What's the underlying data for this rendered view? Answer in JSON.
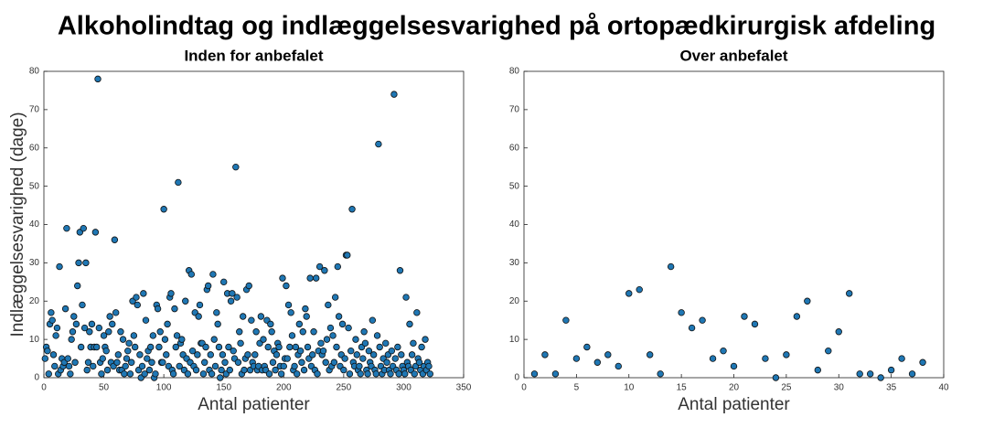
{
  "title": "Alkoholindtag og indlæggelsesvarighed på ortopædkirurgisk afdeling",
  "chart_data": [
    {
      "type": "scatter",
      "title": "Inden for anbefalet",
      "xlabel": "Antal patienter",
      "ylabel": "Indlæggelsesvarighed (dage)",
      "color": "#1f77b4",
      "grid": false,
      "xlim": [
        0,
        350
      ],
      "xticks": [
        0,
        50,
        100,
        150,
        200,
        250,
        300,
        350
      ],
      "ylim": [
        0,
        80
      ],
      "yticks": [
        0,
        10,
        20,
        30,
        40,
        50,
        60,
        70,
        80
      ],
      "x": [
        1,
        2,
        3,
        4,
        5,
        6,
        7,
        8,
        9,
        10,
        11,
        12,
        13,
        14,
        15,
        16,
        17,
        18,
        19,
        20,
        21,
        22,
        23,
        24,
        25,
        26,
        27,
        28,
        29,
        30,
        31,
        32,
        33,
        34,
        35,
        36,
        37,
        38,
        39,
        40,
        41,
        42,
        43,
        44,
        45,
        46,
        47,
        48,
        49,
        50,
        51,
        52,
        53,
        54,
        55,
        56,
        57,
        58,
        59,
        60,
        61,
        62,
        63,
        64,
        65,
        66,
        67,
        68,
        69,
        70,
        71,
        72,
        73,
        74,
        75,
        76,
        77,
        78,
        79,
        80,
        81,
        82,
        83,
        84,
        85,
        86,
        87,
        88,
        89,
        90,
        91,
        92,
        93,
        94,
        95,
        96,
        97,
        98,
        99,
        100,
        101,
        102,
        103,
        104,
        105,
        106,
        107,
        108,
        109,
        110,
        111,
        112,
        113,
        114,
        115,
        116,
        117,
        118,
        119,
        120,
        121,
        122,
        123,
        124,
        125,
        126,
        127,
        128,
        129,
        130,
        131,
        132,
        133,
        134,
        135,
        136,
        137,
        138,
        139,
        140,
        141,
        142,
        143,
        144,
        145,
        146,
        147,
        148,
        149,
        150,
        151,
        152,
        153,
        154,
        155,
        156,
        157,
        158,
        159,
        160,
        161,
        162,
        163,
        164,
        165,
        166,
        167,
        168,
        169,
        170,
        171,
        172,
        173,
        174,
        175,
        176,
        177,
        178,
        179,
        180,
        181,
        182,
        183,
        184,
        185,
        186,
        187,
        188,
        189,
        190,
        191,
        192,
        193,
        194,
        195,
        196,
        197,
        198,
        199,
        200,
        201,
        202,
        203,
        204,
        205,
        206,
        207,
        208,
        209,
        210,
        211,
        212,
        213,
        214,
        215,
        216,
        217,
        218,
        219,
        220,
        221,
        222,
        223,
        224,
        225,
        226,
        227,
        228,
        229,
        230,
        231,
        232,
        233,
        234,
        235,
        236,
        237,
        238,
        239,
        240,
        241,
        242,
        243,
        244,
        245,
        246,
        247,
        248,
        249,
        250,
        251,
        252,
        253,
        254,
        255,
        256,
        257,
        258,
        259,
        260,
        261,
        262,
        263,
        264,
        265,
        266,
        267,
        268,
        269,
        270,
        271,
        272,
        273,
        274,
        275,
        276,
        277,
        278,
        279,
        280,
        281,
        282,
        283,
        284,
        285,
        286,
        287,
        288,
        289,
        290,
        291,
        292,
        293,
        294,
        295,
        296,
        297,
        298,
        299,
        300,
        301,
        302,
        303,
        304,
        305,
        306,
        307,
        308,
        309,
        310,
        311,
        312,
        313,
        314,
        315,
        316,
        317,
        318,
        319,
        320,
        321,
        322
      ],
      "values": [
        5,
        8,
        7,
        1,
        14,
        17,
        15,
        6,
        3,
        11,
        13,
        1,
        29,
        2,
        5,
        3,
        4,
        18,
        39,
        5,
        3,
        1,
        10,
        12,
        16,
        4,
        14,
        24,
        30,
        38,
        8,
        19,
        39,
        13,
        30,
        2,
        4,
        12,
        8,
        14,
        3,
        8,
        38,
        8,
        78,
        13,
        4,
        1,
        5,
        11,
        8,
        7,
        2,
        12,
        16,
        4,
        14,
        3,
        36,
        17,
        4,
        6,
        2,
        12,
        2,
        10,
        1,
        3,
        5,
        7,
        9,
        1,
        4,
        20,
        11,
        8,
        21,
        19,
        2,
        6,
        0,
        3,
        22,
        1,
        15,
        5,
        7,
        2,
        8,
        4,
        11,
        0,
        1,
        19,
        18,
        8,
        12,
        4,
        4,
        44,
        10,
        6,
        14,
        3,
        21,
        22,
        2,
        1,
        18,
        8,
        11,
        51,
        3,
        9,
        10,
        6,
        2,
        20,
        5,
        1,
        28,
        4,
        27,
        7,
        3,
        17,
        2,
        6,
        16,
        19,
        9,
        9,
        1,
        4,
        8,
        23,
        24,
        2,
        6,
        1,
        27,
        10,
        3,
        17,
        14,
        8,
        0,
        2,
        6,
        25,
        4,
        1,
        22,
        8,
        2,
        20,
        22,
        7,
        5,
        55,
        21,
        4,
        12,
        9,
        1,
        16,
        2,
        5,
        23,
        6,
        24,
        2,
        15,
        4,
        3,
        6,
        12,
        2,
        3,
        9,
        16,
        2,
        10,
        3,
        2,
        15,
        8,
        1,
        14,
        12,
        4,
        7,
        2,
        6,
        9,
        8,
        3,
        1,
        26,
        3,
        5,
        24,
        5,
        19,
        8,
        17,
        11,
        2,
        3,
        8,
        1,
        6,
        14,
        7,
        4,
        12,
        2,
        18,
        16,
        8,
        5,
        26,
        3,
        6,
        12,
        2,
        26,
        1,
        7,
        29,
        9,
        6,
        7,
        28,
        4,
        10,
        19,
        2,
        13,
        3,
        11,
        4,
        21,
        8,
        29,
        16,
        3,
        6,
        14,
        2,
        5,
        32,
        32,
        13,
        1,
        7,
        44,
        4,
        3,
        10,
        6,
        2,
        3,
        1,
        8,
        5,
        12,
        9,
        2,
        1,
        7,
        4,
        3,
        15,
        6,
        2,
        1,
        11,
        61,
        8,
        3,
        1,
        5,
        2,
        9,
        4,
        6,
        2,
        1,
        7,
        3,
        74,
        5,
        2,
        8,
        1,
        28,
        6,
        3,
        2,
        1,
        21,
        4,
        3,
        14,
        2,
        6,
        9,
        1,
        3,
        17,
        5,
        4,
        2,
        8,
        1,
        3,
        10,
        2,
        4,
        3,
        1
      ]
    },
    {
      "type": "scatter",
      "title": "Over anbefalet",
      "xlabel": "Antal patienter",
      "color": "#1f77b4",
      "grid": false,
      "xlim": [
        0,
        40
      ],
      "xticks": [
        0,
        5,
        10,
        15,
        20,
        25,
        30,
        35,
        40
      ],
      "ylim": [
        0,
        80
      ],
      "yticks": [
        0,
        10,
        20,
        30,
        40,
        50,
        60,
        70,
        80
      ],
      "x": [
        1,
        2,
        3,
        4,
        5,
        6,
        7,
        8,
        9,
        10,
        11,
        12,
        13,
        14,
        15,
        16,
        17,
        18,
        19,
        20,
        21,
        22,
        23,
        24,
        25,
        26,
        27,
        28,
        29,
        30,
        31,
        32,
        33,
        34,
        35,
        36,
        37,
        38
      ],
      "values": [
        1,
        6,
        1,
        15,
        5,
        8,
        4,
        6,
        3,
        22,
        23,
        6,
        1,
        29,
        17,
        13,
        15,
        5,
        7,
        3,
        16,
        14,
        5,
        0,
        6,
        16,
        20,
        2,
        7,
        12,
        22,
        1,
        1,
        0,
        2,
        5,
        1,
        4
      ]
    }
  ]
}
